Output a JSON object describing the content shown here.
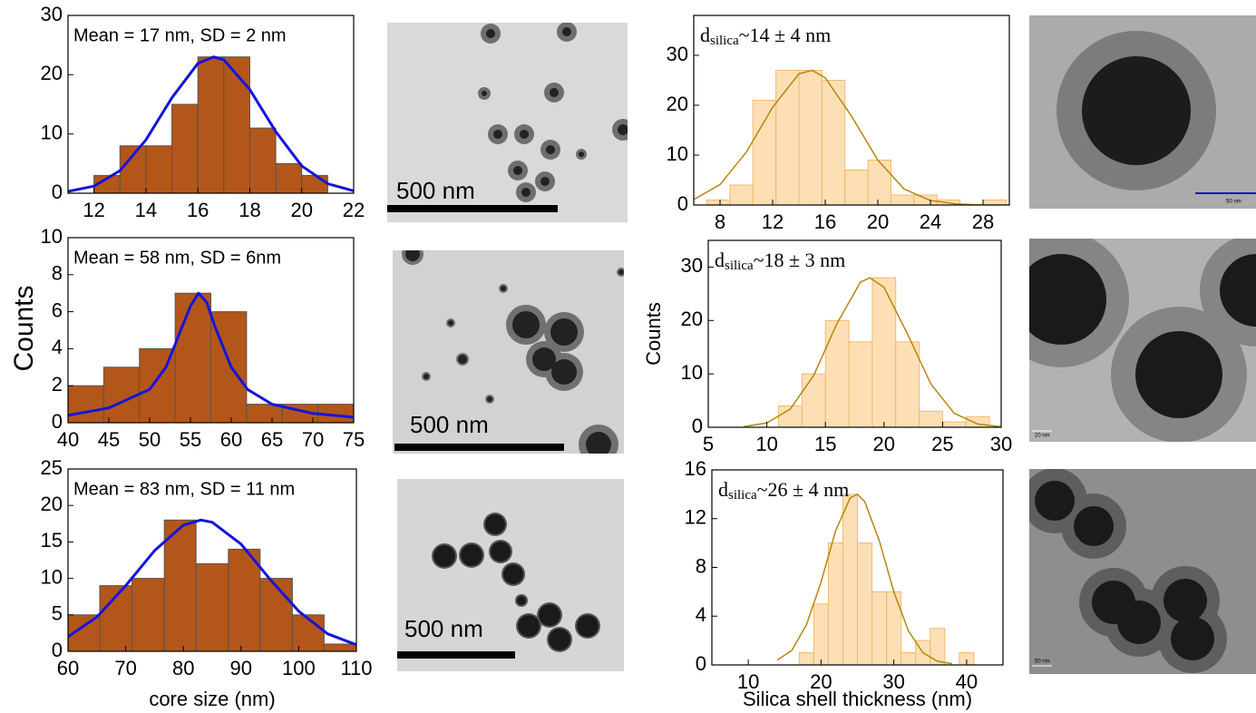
{
  "chart_data": [
    {
      "type": "histogram",
      "annotation": "Mean = 17 nm, SD = 2 nm",
      "color": "#b3561a",
      "bins": [
        12,
        13,
        14,
        15,
        16,
        17,
        18,
        19,
        20,
        21
      ],
      "values": [
        3,
        8,
        8,
        15,
        23,
        23,
        11,
        5,
        3
      ],
      "fit": {
        "color": "#1414dc",
        "x": [
          11,
          12,
          13,
          14,
          15,
          16,
          16.6,
          17,
          18,
          19,
          20,
          21,
          22
        ],
        "values": [
          0.3,
          1.2,
          3.8,
          9,
          16.1,
          21.9,
          23,
          22.5,
          17.5,
          10.4,
          4.6,
          1.6,
          0.4
        ]
      },
      "xlim": [
        11,
        22
      ],
      "xticks": [
        12,
        14,
        16,
        18,
        20,
        22
      ],
      "ylim": [
        0,
        30
      ],
      "yticks": [
        0,
        10,
        20,
        30
      ]
    },
    {
      "type": "histogram",
      "annotation": "Mean = 58 nm, SD = 6nm",
      "color": "#b3561a",
      "ylabel": "Counts",
      "bins": [
        40,
        44.375,
        48.75,
        53.125,
        57.5,
        61.875,
        66.25,
        70.625,
        75
      ],
      "values": [
        2,
        3,
        4,
        7,
        6,
        1,
        1,
        1
      ],
      "fit": {
        "color": "#1414dc",
        "x": [
          40,
          45,
          50,
          52,
          54,
          55,
          56,
          57,
          58,
          60,
          62,
          65,
          70,
          75
        ],
        "values": [
          0.4,
          0.8,
          1.8,
          3,
          5.2,
          6.3,
          7,
          6.5,
          5.2,
          3,
          1.8,
          1,
          0.5,
          0.3
        ]
      },
      "xlim": [
        40,
        75
      ],
      "xticks": [
        40,
        45,
        50,
        55,
        60,
        65,
        70,
        75
      ],
      "ylim": [
        0,
        10
      ],
      "yticks": [
        0,
        2,
        4,
        6,
        8,
        10
      ]
    },
    {
      "type": "histogram",
      "annotation": "Mean = 83 nm, SD = 11 nm",
      "color": "#b3561a",
      "xlabel": "core size (nm)",
      "bins": [
        60,
        65.5,
        71.1,
        76.7,
        82.2,
        87.8,
        93.3,
        98.9,
        104.4,
        110
      ],
      "values": [
        5,
        9,
        10,
        18,
        12,
        14,
        10,
        5,
        1
      ],
      "fit": {
        "color": "#1414dc",
        "x": [
          60,
          65,
          70,
          75,
          80,
          83,
          85,
          90,
          95,
          100,
          105,
          110
        ],
        "values": [
          2,
          4.7,
          9,
          13.8,
          17.3,
          18,
          17.7,
          14.7,
          9.9,
          5.5,
          2.4,
          0.9
        ]
      },
      "xlim": [
        60,
        110
      ],
      "xticks": [
        60,
        70,
        80,
        90,
        100,
        110
      ],
      "ylim": [
        0,
        25
      ],
      "yticks": [
        0,
        5,
        10,
        15,
        20,
        25
      ]
    },
    {
      "type": "histogram",
      "annotation": {
        "symbol": "d",
        "subscript": "silica",
        "text": "~14 ± 4 nm"
      },
      "color": "#fdd9a8",
      "bins": [
        7,
        8.75,
        10.5,
        12.25,
        14,
        15.75,
        17.5,
        19.25,
        21,
        22.75,
        24.5,
        26.25,
        28,
        29.75
      ],
      "values": [
        1,
        4,
        21,
        27,
        27,
        25,
        7,
        9,
        2,
        2,
        1,
        0,
        1
      ],
      "fit": {
        "color": "#b8860b",
        "x": [
          6,
          8,
          10,
          12,
          14,
          15,
          16,
          18,
          20,
          22,
          24,
          26,
          28,
          30
        ],
        "values": [
          1.1,
          4.1,
          10.6,
          19.6,
          26.3,
          27,
          25.5,
          17.8,
          9,
          3.2,
          0.9,
          0.2,
          0,
          0
        ]
      },
      "xlim": [
        6,
        30
      ],
      "xticks": [
        8,
        12,
        16,
        20,
        24,
        28
      ],
      "ylim": [
        0,
        38
      ],
      "yticks": [
        0,
        10,
        20,
        30
      ]
    },
    {
      "type": "histogram",
      "annotation": {
        "symbol": "d",
        "subscript": "silica",
        "text": "~18 ± 3 nm"
      },
      "color": "#fdd9a8",
      "ylabel": "Counts",
      "bins": [
        11,
        13,
        15,
        17,
        19,
        21,
        23,
        25,
        27,
        29
      ],
      "values": [
        4,
        10,
        20,
        16,
        28,
        16,
        3,
        1,
        2
      ],
      "fit": {
        "color": "#b8860b",
        "x": [
          8,
          10,
          12,
          14,
          16,
          18,
          18.8,
          20,
          22,
          24,
          26,
          28,
          30
        ],
        "values": [
          0.1,
          0.8,
          3.4,
          9.7,
          19.5,
          27.2,
          28,
          26.2,
          17.5,
          8.1,
          2.6,
          0.6,
          0.1
        ]
      },
      "xlim": [
        5,
        30
      ],
      "xticks": [
        5,
        10,
        15,
        20,
        25,
        30
      ],
      "ylim": [
        0,
        35
      ],
      "yticks": [
        0,
        10,
        20,
        30
      ]
    },
    {
      "type": "histogram",
      "annotation": {
        "symbol": "d",
        "subscript": "silica",
        "text": "~26 ± 4 nm"
      },
      "color": "#fdd9a8",
      "xlabel": "Silica shell thickness (nm)",
      "bins": [
        17,
        19,
        21,
        23,
        25,
        27,
        29,
        31,
        33,
        35,
        37,
        39,
        41
      ],
      "values": [
        1,
        5,
        10,
        14,
        10,
        6,
        6,
        1,
        2,
        3,
        0,
        1
      ],
      "fit": {
        "color": "#b8860b",
        "x": [
          14,
          16,
          18,
          20,
          22,
          24,
          25,
          26,
          28,
          30,
          32,
          34,
          36,
          38
        ],
        "values": [
          0.4,
          1.2,
          3.3,
          6.8,
          11,
          13.7,
          14,
          13.4,
          10.2,
          6,
          2.8,
          1,
          0.3,
          0.1
        ]
      },
      "xlim": [
        5,
        45
      ],
      "xticks": [
        10,
        20,
        30,
        40
      ],
      "ylim": [
        0,
        16
      ],
      "yticks": [
        0,
        4,
        8,
        12,
        16
      ]
    }
  ],
  "images": [
    {
      "scale_label": "500 nm"
    },
    {
      "scale_label": "500 nm"
    },
    {
      "scale_label": "500 nm"
    },
    {
      "scale_label": "50 nm"
    },
    {
      "scale_label": "20 nm"
    },
    {
      "scale_label": "50 nm"
    }
  ]
}
